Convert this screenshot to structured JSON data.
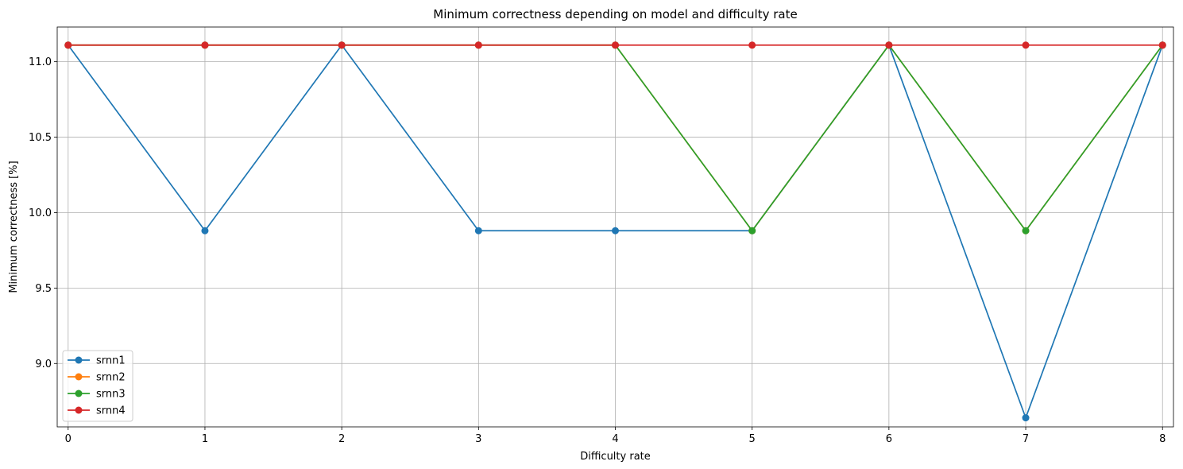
{
  "chart_data": {
    "type": "line",
    "title": "Minimum correctness depending on model and difficulty rate",
    "xlabel": "Difficulty rate",
    "ylabel": "Minimum correctness [%]",
    "x": [
      0,
      1,
      2,
      3,
      4,
      5,
      6,
      7,
      8
    ],
    "xlim": [
      -0.08,
      8.08
    ],
    "ylim": [
      8.58,
      11.23
    ],
    "x_ticks": [
      "0",
      "1",
      "2",
      "3",
      "4",
      "5",
      "6",
      "7",
      "8"
    ],
    "y_ticks": [
      9.0,
      9.5,
      10.0,
      10.5,
      11.0
    ],
    "y_tick_labels": [
      "9.0",
      "9.5",
      "10.0",
      "10.5",
      "11.0"
    ],
    "grid": true,
    "legend_position": "lower-left",
    "series": [
      {
        "name": "srnn1",
        "color": "#1f77b4",
        "values": [
          11.11,
          9.88,
          11.11,
          9.88,
          9.88,
          9.88,
          11.11,
          8.64,
          11.11
        ]
      },
      {
        "name": "srnn2",
        "color": "#ff7f0e",
        "values": [
          11.11,
          11.11,
          11.11,
          11.11,
          11.11,
          9.88,
          11.11,
          9.88,
          11.11
        ]
      },
      {
        "name": "srnn3",
        "color": "#2ca02c",
        "values": [
          11.11,
          11.11,
          11.11,
          11.11,
          11.11,
          9.88,
          11.11,
          9.88,
          11.11
        ]
      },
      {
        "name": "srnn4",
        "color": "#d62728",
        "values": [
          11.11,
          11.11,
          11.11,
          11.11,
          11.11,
          11.11,
          11.11,
          11.11,
          11.11
        ]
      }
    ]
  }
}
